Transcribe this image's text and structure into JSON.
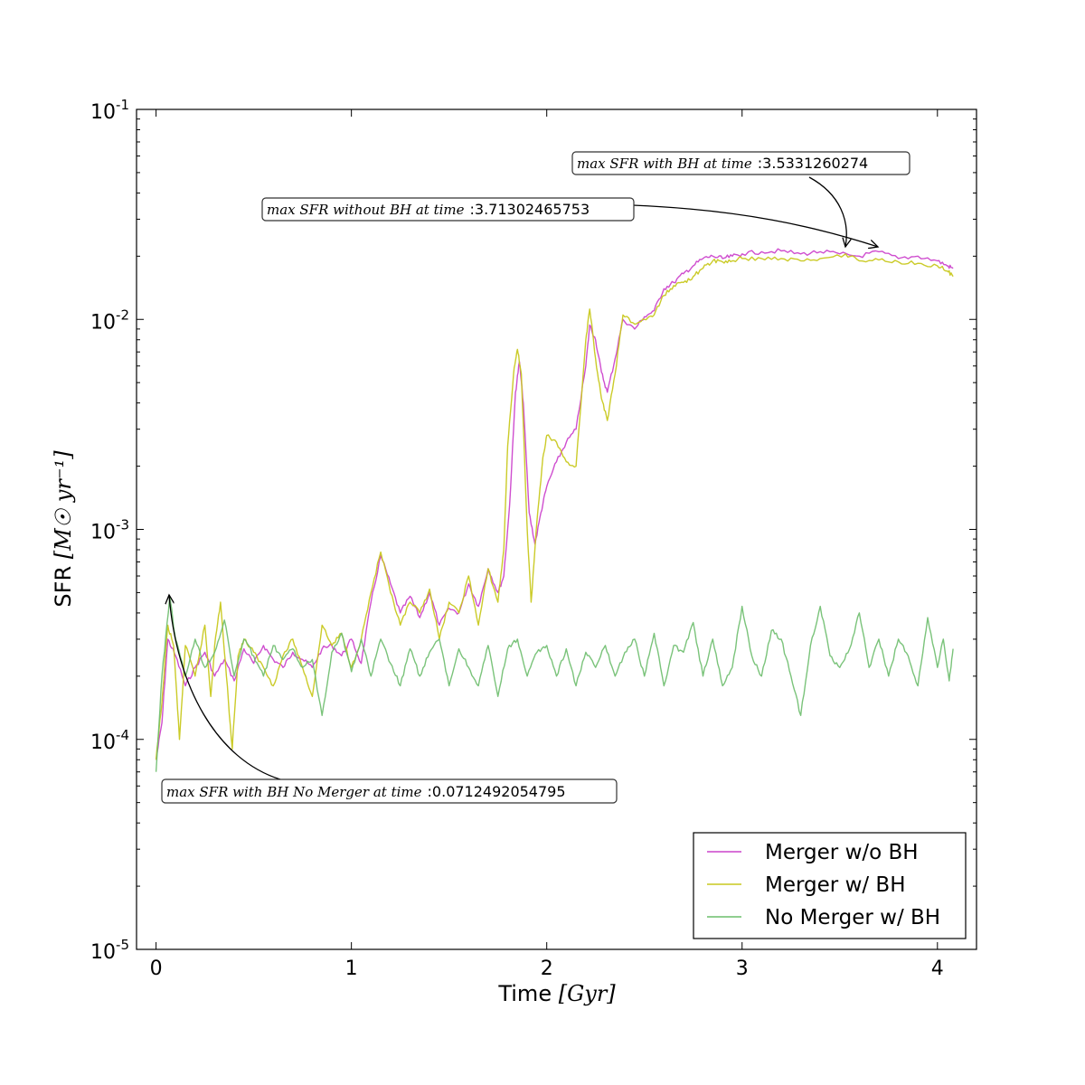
{
  "chart_data": {
    "type": "line",
    "title": "",
    "xlabel": "Time",
    "xlabel_unit": "[Gyr]",
    "ylabel": "SFR",
    "ylabel_unit": "[M☉ yr⁻¹]",
    "xscale": "linear",
    "yscale": "log",
    "xlim": [
      -0.1,
      4.2
    ],
    "ylim": [
      1e-05,
      0.1
    ],
    "grid": false,
    "legend_position": "lower-right",
    "x_ticks": [
      0,
      1,
      2,
      3,
      4
    ],
    "x_tick_labels": [
      "0",
      "1",
      "2",
      "3",
      "4"
    ],
    "y_ticks": [
      1e-05,
      0.0001,
      0.001,
      0.01,
      0.1
    ],
    "y_tick_labels": [
      {
        "base": "10",
        "exp": "-5"
      },
      {
        "base": "10",
        "exp": "-4"
      },
      {
        "base": "10",
        "exp": "-3"
      },
      {
        "base": "10",
        "exp": "-2"
      },
      {
        "base": "10",
        "exp": "-1"
      }
    ],
    "series": [
      {
        "name": "Merger w/o BH",
        "color": "#cc44cc",
        "points": [
          [
            0.0,
            8e-05
          ],
          [
            0.03,
            0.00012
          ],
          [
            0.06,
            0.0003
          ],
          [
            0.1,
            0.00025
          ],
          [
            0.15,
            0.00018
          ],
          [
            0.2,
            0.00022
          ],
          [
            0.25,
            0.00026
          ],
          [
            0.3,
            0.0002
          ],
          [
            0.35,
            0.00024
          ],
          [
            0.4,
            0.00019
          ],
          [
            0.45,
            0.00027
          ],
          [
            0.5,
            0.00023
          ],
          [
            0.55,
            0.00028
          ],
          [
            0.6,
            0.00024
          ],
          [
            0.65,
            0.00022
          ],
          [
            0.7,
            0.00026
          ],
          [
            0.75,
            0.00024
          ],
          [
            0.8,
            0.00022
          ],
          [
            0.85,
            0.00027
          ],
          [
            0.9,
            0.00028
          ],
          [
            0.95,
            0.00025
          ],
          [
            1.0,
            0.0003
          ],
          [
            1.05,
            0.00023
          ],
          [
            1.1,
            0.00045
          ],
          [
            1.15,
            0.00075
          ],
          [
            1.2,
            0.00055
          ],
          [
            1.25,
            0.0004
          ],
          [
            1.3,
            0.00048
          ],
          [
            1.35,
            0.00038
          ],
          [
            1.4,
            0.0005
          ],
          [
            1.45,
            0.00035
          ],
          [
            1.5,
            0.00042
          ],
          [
            1.55,
            0.0004
          ],
          [
            1.6,
            0.00055
          ],
          [
            1.65,
            0.00043
          ],
          [
            1.7,
            0.00065
          ],
          [
            1.75,
            0.0005
          ],
          [
            1.78,
            0.0006
          ],
          [
            1.81,
            0.0013
          ],
          [
            1.84,
            0.0045
          ],
          [
            1.86,
            0.0063
          ],
          [
            1.88,
            0.004
          ],
          [
            1.91,
            0.0012
          ],
          [
            1.94,
            0.00085
          ],
          [
            1.97,
            0.0012
          ],
          [
            2.0,
            0.0016
          ],
          [
            2.05,
            0.0021
          ],
          [
            2.1,
            0.0026
          ],
          [
            2.15,
            0.003
          ],
          [
            2.2,
            0.006
          ],
          [
            2.22,
            0.0094
          ],
          [
            2.25,
            0.008
          ],
          [
            2.28,
            0.0056
          ],
          [
            2.31,
            0.0045
          ],
          [
            2.35,
            0.0065
          ],
          [
            2.39,
            0.01
          ],
          [
            2.45,
            0.009
          ],
          [
            2.5,
            0.0103
          ],
          [
            2.55,
            0.011
          ],
          [
            2.6,
            0.014
          ],
          [
            2.65,
            0.015
          ],
          [
            2.7,
            0.0165
          ],
          [
            2.75,
            0.018
          ],
          [
            2.8,
            0.0195
          ],
          [
            2.85,
            0.02
          ],
          [
            2.9,
            0.0195
          ],
          [
            2.95,
            0.02
          ],
          [
            3.0,
            0.0205
          ],
          [
            3.1,
            0.021
          ],
          [
            3.2,
            0.0212
          ],
          [
            3.3,
            0.0205
          ],
          [
            3.4,
            0.021
          ],
          [
            3.5,
            0.0205
          ],
          [
            3.6,
            0.02
          ],
          [
            3.7,
            0.021
          ],
          [
            3.8,
            0.0195
          ],
          [
            3.9,
            0.02
          ],
          [
            4.0,
            0.019
          ],
          [
            4.05,
            0.018
          ],
          [
            4.08,
            0.0175
          ]
        ]
      },
      {
        "name": "Merger w/ BH",
        "color": "#c8c81e",
        "points": [
          [
            0.0,
            8e-05
          ],
          [
            0.03,
            0.00015
          ],
          [
            0.06,
            0.00035
          ],
          [
            0.09,
            0.00028
          ],
          [
            0.12,
            0.0001
          ],
          [
            0.15,
            0.00028
          ],
          [
            0.2,
            0.0002
          ],
          [
            0.25,
            0.00035
          ],
          [
            0.28,
            0.00016
          ],
          [
            0.3,
            0.00028
          ],
          [
            0.33,
            0.00045
          ],
          [
            0.36,
            0.0002
          ],
          [
            0.39,
            9e-05
          ],
          [
            0.42,
            0.00025
          ],
          [
            0.45,
            0.0003
          ],
          [
            0.5,
            0.00026
          ],
          [
            0.55,
            0.00022
          ],
          [
            0.6,
            0.00018
          ],
          [
            0.65,
            0.00025
          ],
          [
            0.7,
            0.0003
          ],
          [
            0.75,
            0.00022
          ],
          [
            0.8,
            0.00016
          ],
          [
            0.85,
            0.00035
          ],
          [
            0.9,
            0.00028
          ],
          [
            0.95,
            0.00032
          ],
          [
            1.0,
            0.00022
          ],
          [
            1.05,
            0.0003
          ],
          [
            1.1,
            0.0005
          ],
          [
            1.15,
            0.00078
          ],
          [
            1.2,
            0.0005
          ],
          [
            1.25,
            0.00035
          ],
          [
            1.3,
            0.00045
          ],
          [
            1.35,
            0.0004
          ],
          [
            1.4,
            0.00052
          ],
          [
            1.45,
            0.0003
          ],
          [
            1.5,
            0.00045
          ],
          [
            1.55,
            0.0004
          ],
          [
            1.6,
            0.0006
          ],
          [
            1.65,
            0.00035
          ],
          [
            1.7,
            0.00065
          ],
          [
            1.75,
            0.00045
          ],
          [
            1.78,
            0.0008
          ],
          [
            1.8,
            0.0025
          ],
          [
            1.83,
            0.0055
          ],
          [
            1.85,
            0.0072
          ],
          [
            1.87,
            0.0055
          ],
          [
            1.9,
            0.001
          ],
          [
            1.92,
            0.00045
          ],
          [
            1.95,
            0.0011
          ],
          [
            1.98,
            0.0022
          ],
          [
            2.0,
            0.0028
          ],
          [
            2.05,
            0.0026
          ],
          [
            2.1,
            0.0021
          ],
          [
            2.15,
            0.002
          ],
          [
            2.2,
            0.008
          ],
          [
            2.22,
            0.0112
          ],
          [
            2.25,
            0.0065
          ],
          [
            2.28,
            0.0042
          ],
          [
            2.31,
            0.0033
          ],
          [
            2.35,
            0.0055
          ],
          [
            2.39,
            0.0105
          ],
          [
            2.45,
            0.0095
          ],
          [
            2.5,
            0.01
          ],
          [
            2.55,
            0.0105
          ],
          [
            2.6,
            0.013
          ],
          [
            2.65,
            0.0145
          ],
          [
            2.7,
            0.015
          ],
          [
            2.75,
            0.016
          ],
          [
            2.8,
            0.0175
          ],
          [
            2.85,
            0.019
          ],
          [
            2.9,
            0.0188
          ],
          [
            2.95,
            0.019
          ],
          [
            3.0,
            0.0195
          ],
          [
            3.1,
            0.0195
          ],
          [
            3.2,
            0.0195
          ],
          [
            3.3,
            0.019
          ],
          [
            3.4,
            0.0195
          ],
          [
            3.53,
            0.0205
          ],
          [
            3.6,
            0.019
          ],
          [
            3.7,
            0.0192
          ],
          [
            3.8,
            0.0188
          ],
          [
            3.9,
            0.0185
          ],
          [
            4.0,
            0.018
          ],
          [
            4.05,
            0.017
          ],
          [
            4.08,
            0.016
          ]
        ]
      },
      {
        "name": "No Merger w/ BH",
        "color": "#6cbd6c",
        "points": [
          [
            0.0,
            7e-05
          ],
          [
            0.03,
            0.0002
          ],
          [
            0.07,
            0.00048
          ],
          [
            0.1,
            0.0003
          ],
          [
            0.15,
            0.0002
          ],
          [
            0.2,
            0.0003
          ],
          [
            0.25,
            0.00022
          ],
          [
            0.3,
            0.00026
          ],
          [
            0.35,
            0.00037
          ],
          [
            0.4,
            0.0002
          ],
          [
            0.45,
            0.0003
          ],
          [
            0.5,
            0.00025
          ],
          [
            0.55,
            0.0002
          ],
          [
            0.6,
            0.00028
          ],
          [
            0.65,
            0.00024
          ],
          [
            0.7,
            0.00027
          ],
          [
            0.75,
            0.00022
          ],
          [
            0.8,
            0.00024
          ],
          [
            0.85,
            0.00013
          ],
          [
            0.9,
            0.00026
          ],
          [
            0.95,
            0.00032
          ],
          [
            1.0,
            0.00021
          ],
          [
            1.05,
            0.0003
          ],
          [
            1.1,
            0.0002
          ],
          [
            1.15,
            0.0003
          ],
          [
            1.2,
            0.00023
          ],
          [
            1.25,
            0.00018
          ],
          [
            1.3,
            0.00027
          ],
          [
            1.35,
            0.0002
          ],
          [
            1.4,
            0.00026
          ],
          [
            1.45,
            0.0003
          ],
          [
            1.5,
            0.00018
          ],
          [
            1.55,
            0.00027
          ],
          [
            1.6,
            0.00022
          ],
          [
            1.65,
            0.00018
          ],
          [
            1.7,
            0.00028
          ],
          [
            1.75,
            0.00016
          ],
          [
            1.8,
            0.00027
          ],
          [
            1.85,
            0.0003
          ],
          [
            1.9,
            0.0002
          ],
          [
            1.95,
            0.00026
          ],
          [
            2.0,
            0.00028
          ],
          [
            2.05,
            0.0002
          ],
          [
            2.1,
            0.00027
          ],
          [
            2.15,
            0.00018
          ],
          [
            2.2,
            0.00026
          ],
          [
            2.25,
            0.00022
          ],
          [
            2.3,
            0.00028
          ],
          [
            2.35,
            0.0002
          ],
          [
            2.4,
            0.00026
          ],
          [
            2.45,
            0.0003
          ],
          [
            2.5,
            0.0002
          ],
          [
            2.55,
            0.00032
          ],
          [
            2.6,
            0.00018
          ],
          [
            2.65,
            0.00028
          ],
          [
            2.7,
            0.00026
          ],
          [
            2.75,
            0.00036
          ],
          [
            2.8,
            0.0002
          ],
          [
            2.85,
            0.0003
          ],
          [
            2.9,
            0.00018
          ],
          [
            2.95,
            0.00022
          ],
          [
            3.0,
            0.00043
          ],
          [
            3.05,
            0.00025
          ],
          [
            3.1,
            0.0002
          ],
          [
            3.15,
            0.00033
          ],
          [
            3.2,
            0.0003
          ],
          [
            3.25,
            0.0002
          ],
          [
            3.3,
            0.00013
          ],
          [
            3.35,
            0.00028
          ],
          [
            3.4,
            0.00043
          ],
          [
            3.45,
            0.00025
          ],
          [
            3.5,
            0.00022
          ],
          [
            3.55,
            0.00027
          ],
          [
            3.6,
            0.0004
          ],
          [
            3.65,
            0.00022
          ],
          [
            3.7,
            0.0003
          ],
          [
            3.75,
            0.0002
          ],
          [
            3.8,
            0.0003
          ],
          [
            3.85,
            0.00025
          ],
          [
            3.9,
            0.00018
          ],
          [
            3.95,
            0.00038
          ],
          [
            4.0,
            0.00022
          ],
          [
            4.03,
            0.0003
          ],
          [
            4.06,
            0.00019
          ],
          [
            4.08,
            0.00027
          ]
        ]
      }
    ],
    "annotations": [
      {
        "label": "max SFR with BH at time",
        "value": ":3.5331260274",
        "target": [
          3.5331260274,
          0.0205
        ]
      },
      {
        "label": "max SFR without BH at time",
        "value": ":3.71302465753",
        "target": [
          3.71302465753,
          0.0212
        ]
      },
      {
        "label": "max SFR with BH No Merger at time",
        "value": ":0.0712492054795",
        "target": [
          0.0712492054795,
          0.00048
        ]
      }
    ]
  }
}
